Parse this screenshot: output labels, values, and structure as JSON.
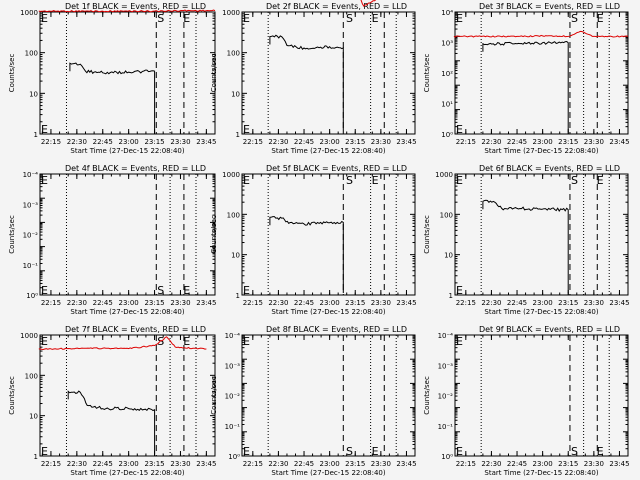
{
  "figure": {
    "xtick_labels": [
      "22:15",
      "22:30",
      "22:45",
      "23:00",
      "23:15",
      "23:30",
      "23:45"
    ],
    "xlabel": "Start Time (27-Dec-15 22:08:40)",
    "ylabel": "Counts/sec",
    "marker_S": "S",
    "marker_E": "E",
    "colors": {
      "background": "#f4f4f4",
      "events": "#000000",
      "lld": "#dd0000"
    }
  },
  "chart_data": [
    {
      "type": "line",
      "title": "Det 1f BLACK = Events, RED = LLD",
      "xlabel": "Start Time (27-Dec-15 22:08:40)",
      "ylabel": "Counts/sec",
      "yscale": "log",
      "ylim": [
        1,
        1000
      ],
      "ytick_labels": [
        "1",
        "10",
        "100",
        "1000"
      ],
      "xlim": [
        "22:08:40",
        "23:50"
      ],
      "dotted_lines": [
        "22:24",
        "23:24",
        "23:39"
      ],
      "dashed_lines": [
        "23:16",
        "23:32"
      ],
      "S_time": "23:16",
      "E_time": "23:31",
      "series": [
        {
          "name": "BLACK = Events",
          "color": "#000000",
          "points": [
            [
              "22:26",
              55
            ],
            [
              "22:32",
              52
            ],
            [
              "22:35",
              35
            ],
            [
              "22:45",
              32
            ],
            [
              "23:00",
              33
            ],
            [
              "23:15",
              35
            ]
          ]
        },
        {
          "name": "RED = LLD",
          "color": "#dd0000",
          "points": [
            [
              "22:08",
              1050
            ],
            [
              "22:45",
              1050
            ],
            [
              "23:15",
              1050
            ],
            [
              "23:30",
              1080
            ],
            [
              "23:50",
              1080
            ]
          ]
        }
      ]
    },
    {
      "type": "line",
      "title": "Det 2f BLACK = Events, RED = LLD",
      "xlabel": "Start Time (27-Dec-15 22:08:40)",
      "ylabel": "Counts/sec",
      "yscale": "log",
      "ylim": [
        1,
        1000
      ],
      "ytick_labels": [
        "1",
        "10",
        "100",
        "1000"
      ],
      "xlim": [
        "22:08:40",
        "23:50"
      ],
      "dotted_lines": [
        "22:24",
        "23:24",
        "23:39"
      ],
      "dashed_lines": [
        "23:08",
        "23:32"
      ],
      "S_time": "23:09",
      "E_time": "23:24",
      "series": [
        {
          "name": "BLACK = Events",
          "color": "#000000",
          "points": [
            [
              "22:25",
              250
            ],
            [
              "22:32",
              245
            ],
            [
              "22:35",
              150
            ],
            [
              "22:45",
              130
            ],
            [
              "23:00",
              140
            ],
            [
              "23:08",
              130
            ]
          ]
        },
        {
          "name": "RED = LLD",
          "color": "#dd0000",
          "points": [
            [
              "22:08",
              2200
            ],
            [
              "22:45",
              2300
            ],
            [
              "23:00",
              3200
            ],
            [
              "23:08",
              2200
            ],
            [
              "23:16",
              3000
            ],
            [
              "23:20",
              1400
            ],
            [
              "23:30",
              2300
            ],
            [
              "23:45",
              2300
            ]
          ]
        }
      ]
    },
    {
      "type": "line",
      "title": "Det 3f BLACK = Events, RED = LLD",
      "xlabel": "Start Time (27-Dec-15 22:08:40)",
      "ylabel": "Counts/sec",
      "yscale": "log",
      "ylim": [
        1,
        100000
      ],
      "ytick_labels": [
        "10⁰",
        "10¹",
        "10²",
        "10³",
        "10⁴"
      ],
      "xlim": [
        "22:08:40",
        "23:50"
      ],
      "dotted_lines": [
        "22:24",
        "23:24",
        "23:39"
      ],
      "dashed_lines": [
        "23:16",
        "23:32"
      ],
      "S_time": "23:16",
      "E_time": "23:31",
      "series": [
        {
          "name": "BLACK = Events",
          "color": "#000000",
          "points": [
            [
              "22:25",
              5000
            ],
            [
              "22:45",
              5000
            ],
            [
              "23:00",
              5500
            ],
            [
              "23:15",
              5500
            ]
          ]
        },
        {
          "name": "RED = LLD",
          "color": "#dd0000",
          "points": [
            [
              "22:08",
              10000
            ],
            [
              "22:45",
              10000
            ],
            [
              "23:00",
              10500
            ],
            [
              "23:15",
              10000
            ],
            [
              "23:22",
              16000
            ],
            [
              "23:30",
              10000
            ],
            [
              "23:50",
              10000
            ]
          ]
        }
      ]
    },
    {
      "type": "line",
      "title": "Det 4f BLACK = Events, RED = LLD",
      "xlabel": "Start Time (27-Dec-15 22:08:40)",
      "ylabel": "Counts/sec",
      "yscale": "log",
      "ylim": [
        1,
        100000
      ],
      "ytick_labels": [
        "10⁰",
        "10⁻¹",
        "10⁻²",
        "10⁻³",
        "10⁻⁴"
      ],
      "xlim": [
        "22:08:40",
        "23:50"
      ],
      "dotted_lines": [
        "22:24",
        "23:24",
        "23:39"
      ],
      "dashed_lines": [
        "23:16",
        "23:32"
      ],
      "S_time": "23:16",
      "E_time": "23:31",
      "series": []
    },
    {
      "type": "line",
      "title": "Det 5f BLACK = Events, RED = LLD",
      "xlabel": "Start Time (27-Dec-15 22:08:40)",
      "ylabel": "Counts/sec",
      "yscale": "log",
      "ylim": [
        1,
        1000
      ],
      "ytick_labels": [
        "1",
        "10",
        "100",
        "1000"
      ],
      "xlim": [
        "22:08:40",
        "23:50"
      ],
      "dotted_lines": [
        "22:24",
        "23:24",
        "23:39"
      ],
      "dashed_lines": [
        "23:08",
        "23:32"
      ],
      "S_time": "23:09",
      "E_time": "23:24",
      "series": [
        {
          "name": "BLACK = Events",
          "color": "#000000",
          "points": [
            [
              "22:25",
              85
            ],
            [
              "22:32",
              80
            ],
            [
              "22:36",
              60
            ],
            [
              "22:45",
              58
            ],
            [
              "23:00",
              62
            ],
            [
              "23:08",
              63
            ]
          ]
        }
      ]
    },
    {
      "type": "line",
      "title": "Det 6f BLACK = Events, RED = LLD",
      "xlabel": "Start Time (27-Dec-15 22:08:40)",
      "ylabel": "Counts/sec",
      "yscale": "log",
      "ylim": [
        1,
        1000
      ],
      "ytick_labels": [
        "1",
        "10",
        "100",
        "1000"
      ],
      "xlim": [
        "22:08:40",
        "23:50"
      ],
      "dotted_lines": [
        "22:24",
        "23:24",
        "23:39"
      ],
      "dashed_lines": [
        "23:16",
        "23:32"
      ],
      "S_time": "23:16",
      "E_time": "23:31",
      "series": [
        {
          "name": "BLACK = Events",
          "color": "#000000",
          "points": [
            [
              "22:25",
              210
            ],
            [
              "22:32",
              200
            ],
            [
              "22:36",
              140
            ],
            [
              "22:45",
              140
            ],
            [
              "23:00",
              135
            ],
            [
              "23:15",
              130
            ]
          ]
        }
      ]
    },
    {
      "type": "line",
      "title": "Det 7f BLACK = Events, RED = LLD",
      "xlabel": "Start Time (27-Dec-15 22:08:40)",
      "ylabel": "Counts/sec",
      "yscale": "log",
      "ylim": [
        1,
        1000
      ],
      "ytick_labels": [
        "1",
        "10",
        "100",
        "1000"
      ],
      "xlim": [
        "22:08:40",
        "23:50"
      ],
      "dotted_lines": [
        "22:24",
        "23:24",
        "23:39"
      ],
      "dashed_lines": [
        "23:16",
        "23:32"
      ],
      "S_time": "23:16",
      "E_time": "23:31",
      "series": [
        {
          "name": "BLACK = Events",
          "color": "#000000",
          "points": [
            [
              "22:25",
              40
            ],
            [
              "22:32",
              38
            ],
            [
              "22:36",
              18
            ],
            [
              "22:45",
              15
            ],
            [
              "23:00",
              15
            ],
            [
              "23:15",
              14
            ]
          ]
        },
        {
          "name": "RED = LLD",
          "color": "#dd0000",
          "points": [
            [
              "22:08",
              450
            ],
            [
              "22:45",
              470
            ],
            [
              "23:00",
              460
            ],
            [
              "23:15",
              550
            ],
            [
              "23:22",
              900
            ],
            [
              "23:27",
              500
            ],
            [
              "23:45",
              450
            ]
          ]
        }
      ]
    },
    {
      "type": "line",
      "title": "Det 8f BLACK = Events, RED = LLD",
      "xlabel": "Start Time (27-Dec-15 22:08:40)",
      "ylabel": "Counts/sec",
      "yscale": "log",
      "ylim": [
        1,
        100000
      ],
      "ytick_labels": [
        "10⁰",
        "10⁻¹",
        "10⁻²",
        "10⁻³",
        "10⁻⁴"
      ],
      "xlim": [
        "22:08:40",
        "23:50"
      ],
      "dotted_lines": [
        "22:24",
        "23:24",
        "23:39"
      ],
      "dashed_lines": [
        "23:08",
        "23:32"
      ],
      "S_time": "23:09",
      "E_time": "23:24",
      "series": []
    },
    {
      "type": "line",
      "title": "Det 9f BLACK = Events, RED = LLD",
      "xlabel": "Start Time (27-Dec-15 22:08:40)",
      "ylabel": "Counts/sec",
      "yscale": "log",
      "ylim": [
        1,
        100000
      ],
      "ytick_labels": [
        "10⁰",
        "10⁻¹",
        "10⁻²",
        "10⁻³",
        "10⁻⁴"
      ],
      "xlim": [
        "22:08:40",
        "23:50"
      ],
      "dotted_lines": [
        "22:24",
        "23:24",
        "23:39"
      ],
      "dashed_lines": [
        "23:16",
        "23:32"
      ],
      "S_time": "23:16",
      "E_time": "23:31",
      "series": []
    }
  ]
}
